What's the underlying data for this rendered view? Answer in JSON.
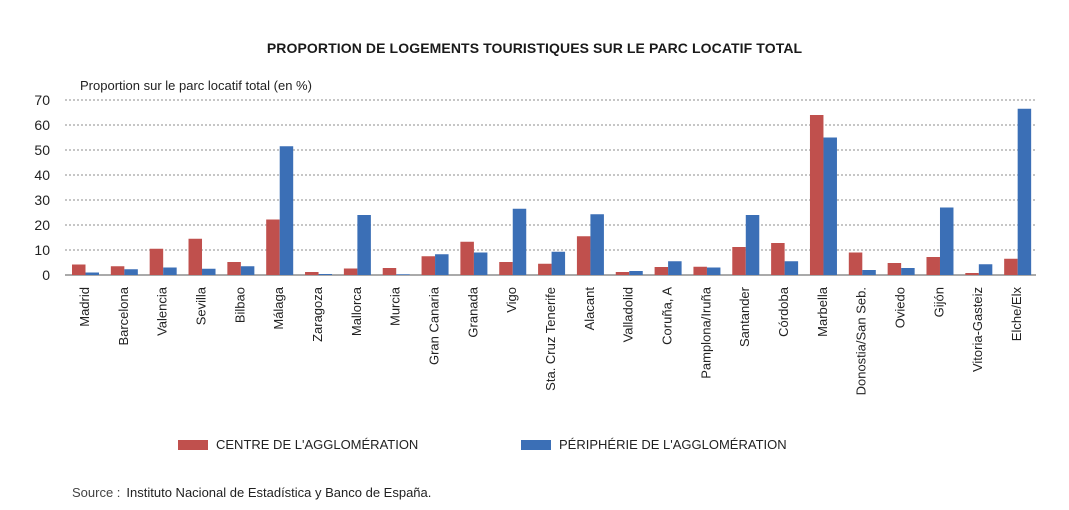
{
  "colors": {
    "centre": "#c0504d",
    "peripherie": "#3b6fb6",
    "grid": "#8c8c8c"
  },
  "chart_data": {
    "type": "bar",
    "title": "PROPORTION DE LOGEMENTS TOURISTIQUES SUR LE PARC LOCATIF TOTAL",
    "ylabel": "Proportion sur le parc locatif total (en %)",
    "xlabel": "",
    "ylim": [
      0,
      70
    ],
    "yticks": [
      0,
      10,
      20,
      30,
      40,
      50,
      60,
      70
    ],
    "grid": true,
    "legend_position": "bottom",
    "categories": [
      "Madrid",
      "Barcelona",
      "Valencia",
      "Sevilla",
      "Bilbao",
      "Málaga",
      "Zaragoza",
      "Mallorca",
      "Murcia",
      "Gran Canaria",
      "Granada",
      "Vigo",
      "Sta. Cruz Tenerife",
      "Alacant",
      "Valladolid",
      "Coruña, A",
      "Pamplona/Iruña",
      "Santander",
      "Córdoba",
      "Marbella",
      "Donostia/San Seb.",
      "Oviedo",
      "Gijón",
      "Vitoria-Gasteiz",
      "Elche/Elx"
    ],
    "series": [
      {
        "name": "CENTRE DE L'AGGLOMÉRATION",
        "values": [
          4.2,
          3.5,
          10.5,
          14.5,
          5.2,
          22.2,
          1.2,
          2.6,
          2.8,
          7.5,
          13.3,
          5.2,
          4.5,
          15.5,
          1.2,
          3.2,
          3.3,
          11.2,
          12.8,
          64.0,
          9.0,
          4.8,
          7.2,
          0.8,
          6.5
        ]
      },
      {
        "name": "PÉRIPHÉRIE DE L'AGGLOMÉRATION",
        "values": [
          1.0,
          2.3,
          3.0,
          2.5,
          3.5,
          51.5,
          0.4,
          24.0,
          0.3,
          8.3,
          9.0,
          26.5,
          9.3,
          24.3,
          1.6,
          5.5,
          3.0,
          24.0,
          5.5,
          55.0,
          2.0,
          2.8,
          27.0,
          4.3,
          66.5
        ]
      }
    ]
  },
  "source": {
    "label": "Source :",
    "text": "Instituto Nacional de Estadística y Banco de España."
  }
}
